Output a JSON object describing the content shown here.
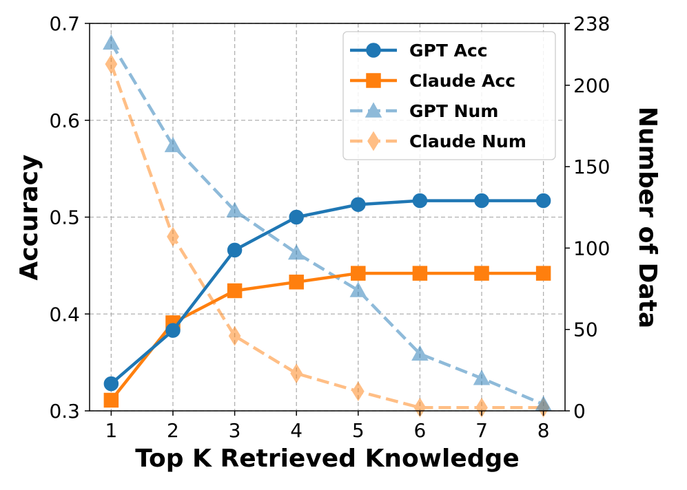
{
  "chart_data": {
    "type": "line",
    "xlabel": "Top K Retrieved Knowledge",
    "ylabel": "Accuracy",
    "y2label": "Number of Data",
    "x": [
      1,
      2,
      3,
      4,
      5,
      6,
      7,
      8
    ],
    "xticks": [
      "1",
      "2",
      "3",
      "4",
      "5",
      "6",
      "7",
      "8"
    ],
    "xlim": [
      0.65,
      8.35
    ],
    "ylim": [
      0.3,
      0.7
    ],
    "yticks": [
      "0.3",
      "0.4",
      "0.5",
      "0.6",
      "0.7"
    ],
    "y2lim": [
      0,
      238
    ],
    "y2ticks": [
      "0",
      "50",
      "100",
      "150",
      "200",
      "238"
    ],
    "grid": true,
    "legend_position": "top-right",
    "series": [
      {
        "name": "GPT Acc",
        "axis": "left",
        "values": [
          0.328,
          0.383,
          0.466,
          0.5,
          0.513,
          0.517,
          0.517,
          0.517
        ],
        "color": "#1f77b4",
        "marker": "circle",
        "linestyle": "solid",
        "opacity": 1.0
      },
      {
        "name": "Claude Acc",
        "axis": "left",
        "values": [
          0.311,
          0.391,
          0.424,
          0.433,
          0.442,
          0.442,
          0.442,
          0.442
        ],
        "color": "#ff7f0e",
        "marker": "square",
        "linestyle": "solid",
        "opacity": 1.0
      },
      {
        "name": "GPT Num",
        "axis": "right",
        "values": [
          226,
          163,
          123,
          97,
          74,
          35,
          20,
          4
        ],
        "color": "#1f77b4",
        "marker": "triangle",
        "linestyle": "dashed",
        "opacity": 0.5
      },
      {
        "name": "Claude Num",
        "axis": "right",
        "values": [
          213,
          107,
          46,
          23,
          12,
          2,
          2,
          2
        ],
        "color": "#ff7f0e",
        "marker": "diamond",
        "linestyle": "dashed",
        "opacity": 0.5
      }
    ]
  }
}
